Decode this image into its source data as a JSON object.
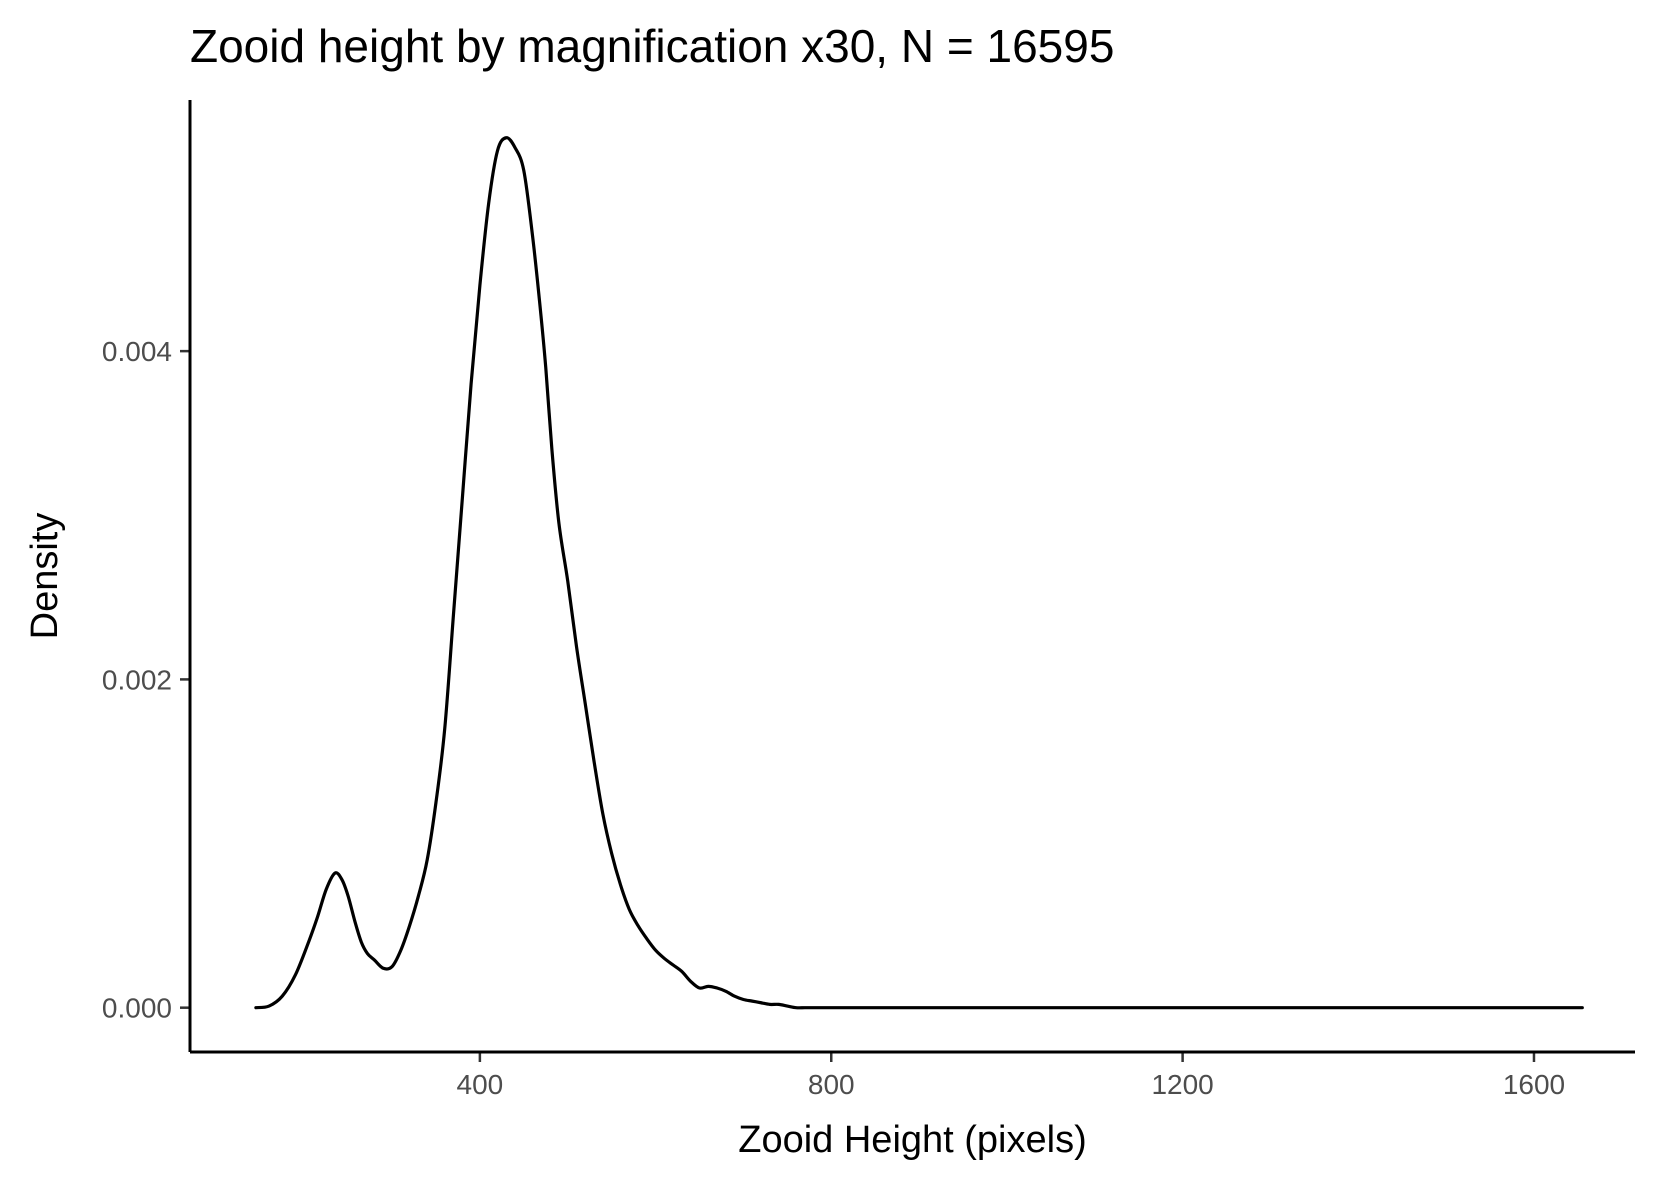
{
  "chart_data": {
    "type": "line",
    "title": "Zooid height by magnification x30, N = 16595",
    "xlabel": "Zooid Height (pixels)",
    "ylabel": "Density",
    "xlim": [
      70,
      1715
    ],
    "ylim": [
      -0.00027,
      0.00553
    ],
    "grid": false,
    "legend": "none",
    "x_ticks": [
      400,
      800,
      1200,
      1600
    ],
    "x_tick_labels": [
      "400",
      "800",
      "1200",
      "1600"
    ],
    "y_ticks": [
      0.0,
      0.002,
      0.004
    ],
    "y_tick_labels": [
      "0.000",
      "0.002",
      "0.004"
    ],
    "series": [
      {
        "color": "#000000",
        "x": [
          145,
          160,
          175,
          190,
          205,
          215,
          225,
          235,
          243,
          250,
          258,
          265,
          272,
          280,
          290,
          300,
          310,
          320,
          330,
          340,
          350,
          360,
          370,
          380,
          390,
          400,
          410,
          420,
          430,
          440,
          450,
          460,
          468,
          475,
          482,
          490,
          500,
          510,
          520,
          530,
          540,
          550,
          560,
          570,
          580,
          590,
          600,
          610,
          620,
          630,
          640,
          650,
          660,
          670,
          680,
          690,
          700,
          710,
          720,
          730,
          740,
          750,
          760,
          770,
          780,
          800,
          820,
          840,
          860,
          880,
          900,
          950,
          1000,
          1050,
          1100,
          1150,
          1200,
          1250,
          1300,
          1350,
          1400,
          1450,
          1500,
          1550,
          1600,
          1655
        ],
        "y": [
          0.0,
          1e-05,
          7e-05,
          0.0002,
          0.0004,
          0.00055,
          0.00072,
          0.00082,
          0.00078,
          0.00068,
          0.00052,
          0.0004,
          0.00033,
          0.00029,
          0.00024,
          0.00025,
          0.00035,
          0.0005,
          0.00068,
          0.0009,
          0.00125,
          0.0017,
          0.0024,
          0.0031,
          0.0038,
          0.0044,
          0.0049,
          0.00522,
          0.0053,
          0.00524,
          0.0051,
          0.0047,
          0.0043,
          0.0039,
          0.0034,
          0.00295,
          0.0026,
          0.0022,
          0.00185,
          0.0015,
          0.00118,
          0.00094,
          0.00075,
          0.0006,
          0.0005,
          0.00042,
          0.00035,
          0.0003,
          0.00026,
          0.00022,
          0.00016,
          0.00012,
          0.00013,
          0.00012,
          0.0001,
          7e-05,
          5e-05,
          4e-05,
          3e-05,
          2e-05,
          2e-05,
          1e-05,
          0.0,
          0.0,
          0.0,
          0.0,
          0.0,
          0.0,
          0.0,
          0.0,
          0.0,
          0.0,
          0.0,
          0.0,
          0.0,
          0.0,
          0.0,
          0.0,
          0.0,
          0.0,
          0.0,
          0.0,
          0.0,
          0.0,
          0.0,
          0.0
        ]
      }
    ]
  }
}
